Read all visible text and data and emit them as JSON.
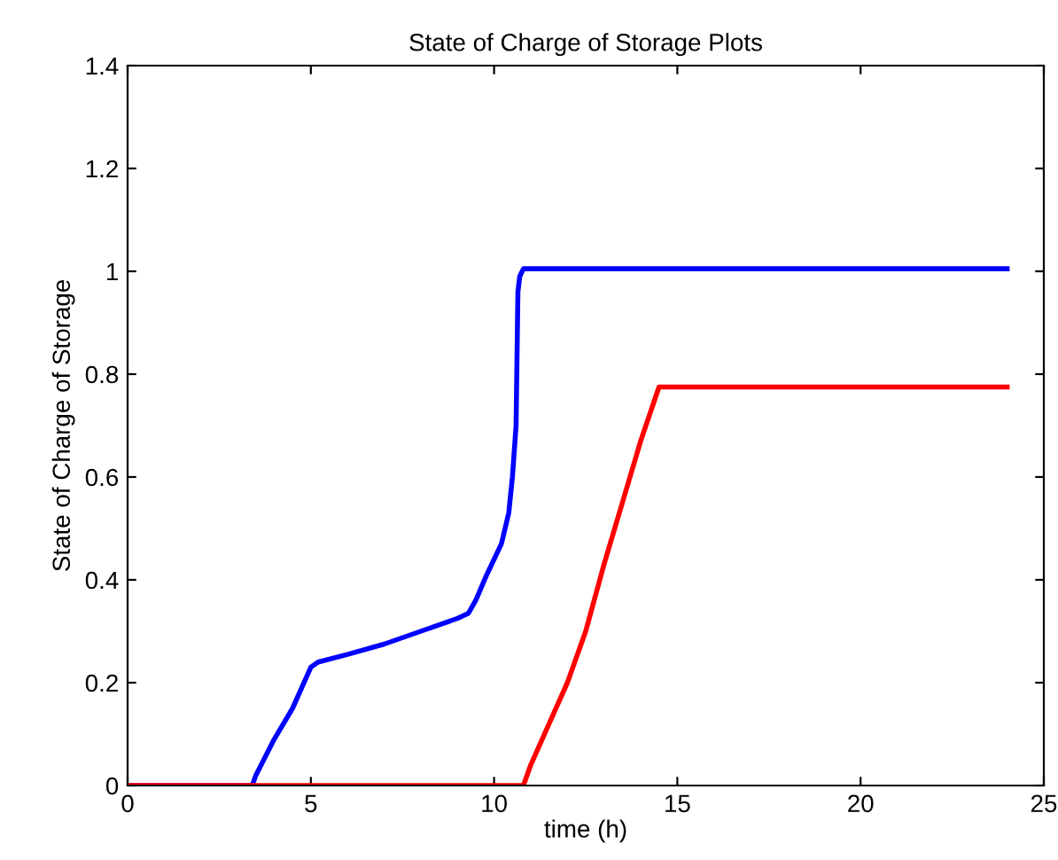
{
  "chart_data": {
    "type": "line",
    "title": "State of Charge of Storage Plots",
    "xlabel": "time (h)",
    "ylabel": "State of Charge of Storage",
    "series": [
      {
        "color": "#0000ff",
        "x": [
          0,
          3.4,
          3.5,
          4.0,
          4.5,
          5.0,
          5.2,
          6.0,
          7.0,
          8.0,
          9.0,
          9.3,
          9.5,
          9.8,
          10.2,
          10.4,
          10.5,
          10.6,
          10.65,
          10.7,
          10.8,
          24
        ],
        "values": [
          0,
          0,
          0.02,
          0.09,
          0.15,
          0.23,
          0.24,
          0.255,
          0.275,
          0.3,
          0.325,
          0.335,
          0.36,
          0.41,
          0.47,
          0.53,
          0.6,
          0.7,
          0.96,
          0.99,
          1.005,
          1.005
        ]
      },
      {
        "color": "#ff0000",
        "x": [
          0,
          10.8,
          11.0,
          11.5,
          12.0,
          12.5,
          13.0,
          13.5,
          14.0,
          14.5,
          24
        ],
        "values": [
          0,
          0,
          0.04,
          0.12,
          0.2,
          0.3,
          0.43,
          0.55,
          0.67,
          0.775,
          0.775
        ]
      }
    ],
    "xlim": [
      0,
      25
    ],
    "xticks": [
      0,
      5,
      10,
      15,
      20,
      25
    ],
    "ylim": [
      0,
      1.4
    ],
    "yticks": [
      0,
      0.2,
      0.4,
      0.6,
      0.8,
      1,
      1.2,
      1.4
    ],
    "grid": false,
    "legend": false,
    "marker": "none",
    "line_style": "solid"
  }
}
